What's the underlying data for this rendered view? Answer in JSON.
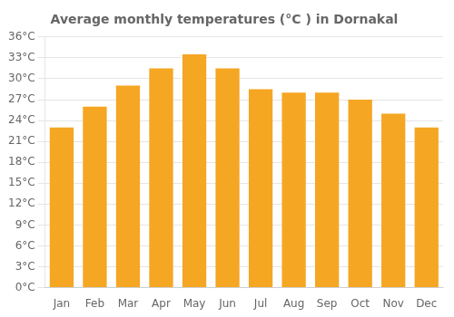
{
  "chart_data": {
    "type": "bar",
    "title": "Average monthly temperatures (°C ) in Dornakal",
    "categories": [
      "Jan",
      "Feb",
      "Mar",
      "Apr",
      "May",
      "Jun",
      "Jul",
      "Aug",
      "Sep",
      "Oct",
      "Nov",
      "Dec"
    ],
    "values": [
      23.0,
      26.0,
      29.0,
      31.5,
      33.5,
      31.5,
      28.5,
      28.0,
      28.0,
      27.0,
      25.0,
      23.0
    ],
    "color": "#F5A623",
    "ylim": [
      0,
      36
    ],
    "yticks": [
      {
        "value": 0,
        "label": "0°C"
      },
      {
        "value": 3,
        "label": "3°C"
      },
      {
        "value": 6,
        "label": "6°C"
      },
      {
        "value": 9,
        "label": "9°C"
      },
      {
        "value": 12,
        "label": "12°C"
      },
      {
        "value": 15,
        "label": "15°C"
      },
      {
        "value": 18,
        "label": "18°C"
      },
      {
        "value": 21,
        "label": "21°C"
      },
      {
        "value": 24,
        "label": "24°C"
      },
      {
        "value": 27,
        "label": "27°C"
      },
      {
        "value": 30,
        "label": "30°C"
      },
      {
        "value": 33,
        "label": "33°C"
      },
      {
        "value": 36,
        "label": "36°C"
      }
    ],
    "grid": true
  }
}
